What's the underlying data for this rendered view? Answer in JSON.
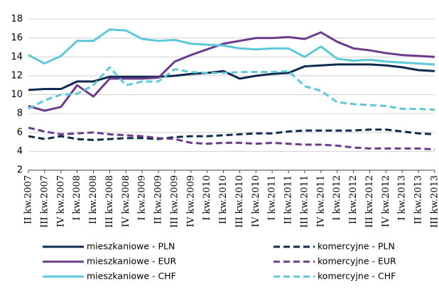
{
  "chart_data": {
    "type": "line",
    "categories": [
      "II kw.2007",
      "III kw.2007",
      "IV kw.2007",
      "I kw.2008",
      "II kw.2008",
      "III kw.2008",
      "IV kw.2008",
      "I kw.2009",
      "II kw.2009",
      "III kw.2009",
      "IV kw.2009",
      "I kw.2010",
      "II kw.2010",
      "III kw.2010",
      "IV kw.2010",
      "I kw.2011",
      "II kw.2011",
      "III kw.2011",
      "IV kw.2011",
      "I kw.2012",
      "II kw.2012",
      "III kw.2012",
      "IV kw.2012",
      "I kw.2013",
      "II kw.2013",
      "III kw.2013"
    ],
    "ylim": [
      2,
      18
    ],
    "yticks": [
      2,
      4,
      6,
      8,
      10,
      12,
      14,
      16,
      18
    ],
    "grid": true,
    "legend": "bottom",
    "series": [
      {
        "name": "mieszkaniowe - PLN",
        "color": "#0f2a4e",
        "dashed": false,
        "values": [
          10.5,
          10.6,
          10.6,
          11.4,
          11.4,
          11.9,
          11.9,
          11.9,
          11.9,
          12.0,
          12.2,
          12.3,
          12.5,
          11.7,
          12.0,
          12.2,
          12.3,
          13.0,
          13.1,
          13.2,
          13.2,
          13.2,
          13.1,
          12.9,
          12.6,
          12.5
        ]
      },
      {
        "name": "komercyjne - PLN",
        "color": "#0f2a4e",
        "dashed": true,
        "values": [
          5.6,
          5.3,
          5.6,
          5.3,
          5.2,
          5.3,
          5.4,
          5.4,
          5.3,
          5.5,
          5.6,
          5.6,
          5.7,
          5.8,
          5.9,
          5.9,
          6.1,
          6.2,
          6.2,
          6.2,
          6.2,
          6.3,
          6.3,
          6.1,
          5.9,
          5.8
        ]
      },
      {
        "name": "mieszkaniowe - EUR",
        "color": "#6b3b8c",
        "dashed": false,
        "values": [
          8.8,
          8.3,
          8.7,
          11.0,
          9.8,
          11.7,
          11.7,
          11.7,
          11.8,
          13.5,
          14.2,
          14.8,
          15.4,
          15.7,
          16.0,
          16.0,
          16.1,
          15.9,
          16.6,
          15.6,
          14.9,
          14.7,
          14.4,
          14.2,
          14.1,
          14.0
        ]
      },
      {
        "name": "komercyjne - EUR",
        "color": "#6b3b8c",
        "dashed": true,
        "values": [
          6.5,
          6.1,
          5.8,
          5.9,
          6.0,
          5.8,
          5.7,
          5.6,
          5.4,
          5.3,
          4.9,
          4.8,
          4.9,
          4.9,
          4.8,
          4.9,
          4.8,
          4.7,
          4.7,
          4.6,
          4.4,
          4.3,
          4.3,
          4.3,
          4.3,
          4.2
        ]
      },
      {
        "name": "mieszkaniowe - CHF",
        "color": "#5cc8d9",
        "dashed": false,
        "values": [
          14.2,
          13.3,
          14.1,
          15.7,
          15.7,
          16.9,
          16.8,
          15.9,
          15.7,
          15.8,
          15.4,
          15.3,
          15.2,
          14.9,
          14.8,
          14.9,
          14.9,
          14.0,
          15.1,
          13.8,
          13.6,
          13.7,
          13.5,
          13.4,
          13.3,
          13.2
        ]
      },
      {
        "name": "komercyjne - CHF",
        "color": "#5cc8d9",
        "dashed": true,
        "values": [
          8.5,
          9.4,
          10.0,
          10.1,
          11.0,
          12.9,
          11.0,
          11.4,
          11.4,
          12.7,
          12.4,
          12.3,
          12.3,
          12.4,
          12.4,
          12.4,
          12.5,
          10.9,
          10.4,
          9.2,
          9.0,
          8.9,
          8.8,
          8.5,
          8.5,
          8.4
        ]
      }
    ]
  }
}
